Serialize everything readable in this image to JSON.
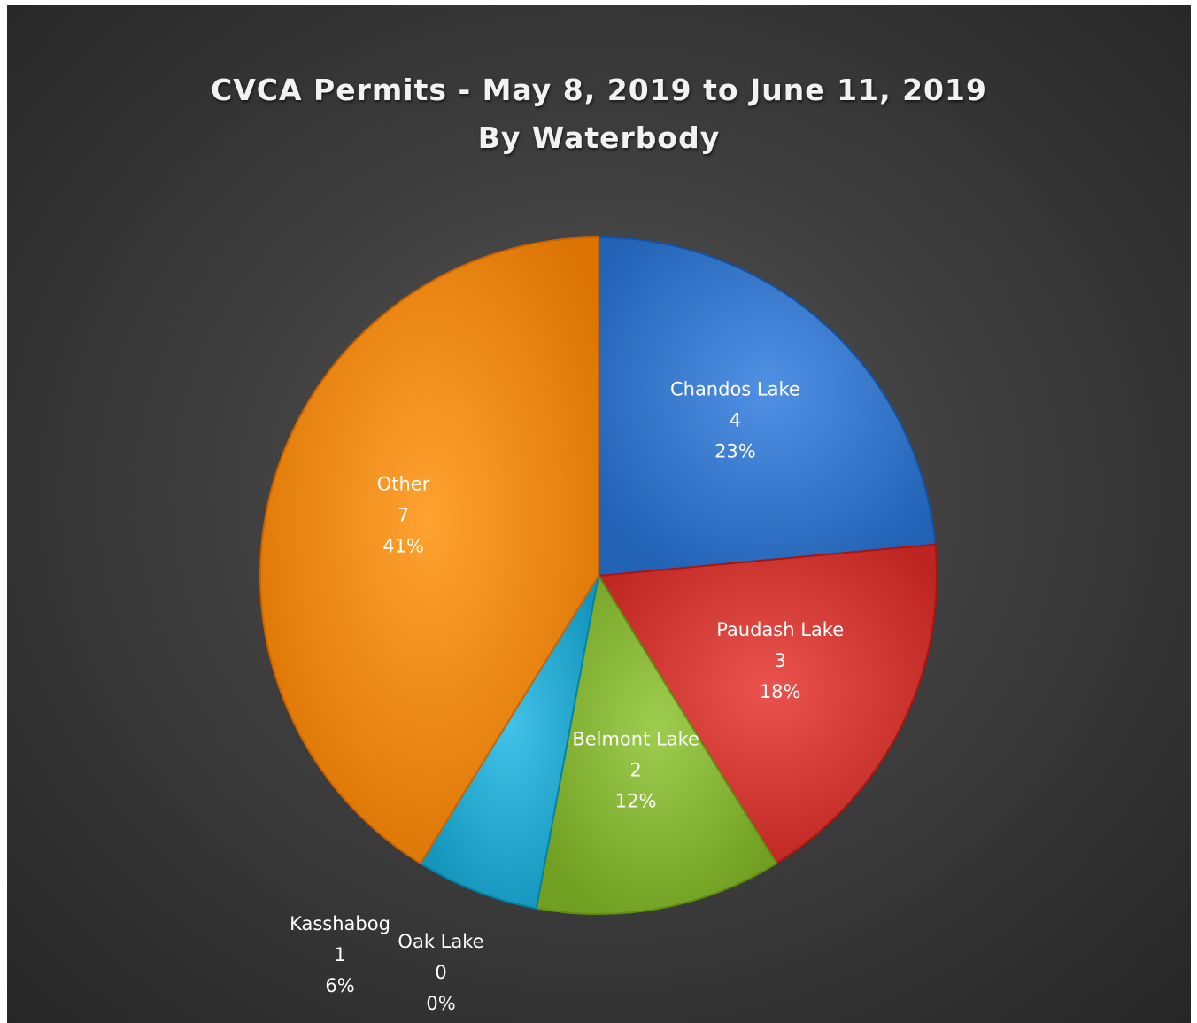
{
  "chart_data": {
    "type": "pie",
    "title": "CVCA Permits  - May 8, 2019 to June 11, 2019",
    "subtitle": "By Waterbody",
    "slices": [
      {
        "name": "Chandos Lake",
        "value": 4,
        "percent": "23%",
        "color": "#3f7fd2"
      },
      {
        "name": "Paudash Lake",
        "value": 3,
        "percent": "18%",
        "color": "#d8413c"
      },
      {
        "name": "Belmont Lake",
        "value": 2,
        "percent": "12%",
        "color": "#8cbb3d"
      },
      {
        "name": "Oak Lake",
        "value": 0,
        "percent": "0%",
        "color": "#7a5aa8"
      },
      {
        "name": "Kasshabog",
        "value": 1,
        "percent": "6%",
        "color": "#2fb0d6"
      },
      {
        "name": "Other",
        "value": 7,
        "percent": "41%",
        "color": "#f7901e"
      }
    ],
    "legend": "none",
    "data_labels": "name, value, percent"
  }
}
